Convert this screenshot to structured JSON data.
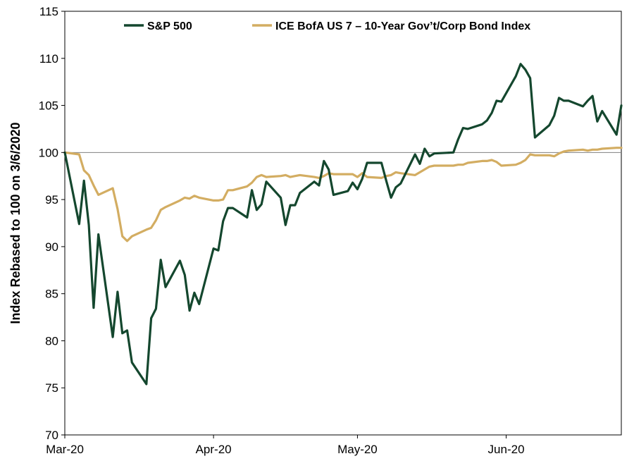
{
  "chart_data": {
    "type": "line",
    "title": "",
    "xlabel": "",
    "ylabel": "Index Rebased to 100 on 3/6/2020",
    "ylim": [
      70,
      115
    ],
    "yticks": [
      70,
      75,
      80,
      85,
      90,
      95,
      100,
      105,
      110,
      115
    ],
    "xlim": [
      "2020-03-06",
      "2020-06-30"
    ],
    "xticks": [
      {
        "date": "2020-03-06",
        "label": "Mar-20"
      },
      {
        "date": "2020-04-06",
        "label": "Apr-20"
      },
      {
        "date": "2020-05-06",
        "label": "May-20"
      },
      {
        "date": "2020-06-06",
        "label": "Jun-20"
      }
    ],
    "reference_line": 100,
    "grid": false,
    "legend_position": "top",
    "series": [
      {
        "name": "S&P 500",
        "color": "#14472e",
        "points": [
          [
            "2020-03-06",
            100.0
          ],
          [
            "2020-03-09",
            92.4
          ],
          [
            "2020-03-10",
            97.0
          ],
          [
            "2020-03-11",
            92.3
          ],
          [
            "2020-03-12",
            83.5
          ],
          [
            "2020-03-13",
            91.3
          ],
          [
            "2020-03-16",
            80.4
          ],
          [
            "2020-03-17",
            85.2
          ],
          [
            "2020-03-18",
            80.8
          ],
          [
            "2020-03-19",
            81.1
          ],
          [
            "2020-03-20",
            77.7
          ],
          [
            "2020-03-23",
            75.4
          ],
          [
            "2020-03-24",
            82.4
          ],
          [
            "2020-03-25",
            83.4
          ],
          [
            "2020-03-26",
            88.6
          ],
          [
            "2020-03-27",
            85.7
          ],
          [
            "2020-03-30",
            88.5
          ],
          [
            "2020-03-31",
            87.0
          ],
          [
            "2020-04-01",
            83.2
          ],
          [
            "2020-04-02",
            85.1
          ],
          [
            "2020-04-03",
            83.9
          ],
          [
            "2020-04-06",
            89.8
          ],
          [
            "2020-04-07",
            89.6
          ],
          [
            "2020-04-08",
            92.7
          ],
          [
            "2020-04-09",
            94.1
          ],
          [
            "2020-04-10",
            94.1
          ],
          [
            "2020-04-13",
            93.1
          ],
          [
            "2020-04-14",
            96.0
          ],
          [
            "2020-04-15",
            93.9
          ],
          [
            "2020-04-16",
            94.5
          ],
          [
            "2020-04-17",
            96.9
          ],
          [
            "2020-04-20",
            95.2
          ],
          [
            "2020-04-21",
            92.3
          ],
          [
            "2020-04-22",
            94.4
          ],
          [
            "2020-04-23",
            94.4
          ],
          [
            "2020-04-24",
            95.7
          ],
          [
            "2020-04-27",
            96.9
          ],
          [
            "2020-04-28",
            96.5
          ],
          [
            "2020-04-29",
            99.1
          ],
          [
            "2020-04-30",
            98.2
          ],
          [
            "2020-05-01",
            95.5
          ],
          [
            "2020-05-04",
            95.9
          ],
          [
            "2020-05-05",
            96.8
          ],
          [
            "2020-05-06",
            96.1
          ],
          [
            "2020-05-07",
            97.2
          ],
          [
            "2020-05-08",
            98.9
          ],
          [
            "2020-05-11",
            98.9
          ],
          [
            "2020-05-12",
            97.0
          ],
          [
            "2020-05-13",
            95.2
          ],
          [
            "2020-05-14",
            96.3
          ],
          [
            "2020-05-15",
            96.7
          ],
          [
            "2020-05-18",
            99.8
          ],
          [
            "2020-05-19",
            98.8
          ],
          [
            "2020-05-20",
            100.4
          ],
          [
            "2020-05-21",
            99.6
          ],
          [
            "2020-05-22",
            99.9
          ],
          [
            "2020-05-26",
            100.0
          ],
          [
            "2020-05-27",
            101.4
          ],
          [
            "2020-05-28",
            102.6
          ],
          [
            "2020-05-29",
            102.5
          ],
          [
            "2020-06-01",
            103.0
          ],
          [
            "2020-06-02",
            103.4
          ],
          [
            "2020-06-03",
            104.2
          ],
          [
            "2020-06-04",
            105.5
          ],
          [
            "2020-06-05",
            105.4
          ],
          [
            "2020-06-08",
            108.1
          ],
          [
            "2020-06-09",
            109.4
          ],
          [
            "2020-06-10",
            108.8
          ],
          [
            "2020-06-11",
            107.9
          ],
          [
            "2020-06-12",
            101.6
          ],
          [
            "2020-06-15",
            102.9
          ],
          [
            "2020-06-16",
            103.9
          ],
          [
            "2020-06-17",
            105.8
          ],
          [
            "2020-06-18",
            105.5
          ],
          [
            "2020-06-19",
            105.5
          ],
          [
            "2020-06-22",
            104.9
          ],
          [
            "2020-06-23",
            105.5
          ],
          [
            "2020-06-24",
            106.0
          ],
          [
            "2020-06-25",
            103.3
          ],
          [
            "2020-06-26",
            104.4
          ],
          [
            "2020-06-29",
            101.9
          ],
          [
            "2020-06-30",
            105.0
          ]
        ]
      },
      {
        "name": "ICE BofA US 7 – 10-Year Gov’t/Corp Bond Index",
        "color": "#d3ad62",
        "points": [
          [
            "2020-03-06",
            100.0
          ],
          [
            "2020-03-09",
            99.8
          ],
          [
            "2020-03-10",
            98.1
          ],
          [
            "2020-03-11",
            97.6
          ],
          [
            "2020-03-12",
            96.5
          ],
          [
            "2020-03-13",
            95.5
          ],
          [
            "2020-03-16",
            96.2
          ],
          [
            "2020-03-17",
            94.0
          ],
          [
            "2020-03-18",
            91.1
          ],
          [
            "2020-03-19",
            90.6
          ],
          [
            "2020-03-20",
            91.1
          ],
          [
            "2020-03-23",
            91.8
          ],
          [
            "2020-03-24",
            92.0
          ],
          [
            "2020-03-25",
            92.8
          ],
          [
            "2020-03-26",
            93.9
          ],
          [
            "2020-03-27",
            94.2
          ],
          [
            "2020-03-30",
            94.9
          ],
          [
            "2020-03-31",
            95.2
          ],
          [
            "2020-04-01",
            95.1
          ],
          [
            "2020-04-02",
            95.4
          ],
          [
            "2020-04-03",
            95.2
          ],
          [
            "2020-04-06",
            94.9
          ],
          [
            "2020-04-07",
            94.9
          ],
          [
            "2020-04-08",
            95.0
          ],
          [
            "2020-04-09",
            96.0
          ],
          [
            "2020-04-10",
            96.0
          ],
          [
            "2020-04-13",
            96.4
          ],
          [
            "2020-04-14",
            96.8
          ],
          [
            "2020-04-15",
            97.4
          ],
          [
            "2020-04-16",
            97.6
          ],
          [
            "2020-04-17",
            97.4
          ],
          [
            "2020-04-20",
            97.5
          ],
          [
            "2020-04-21",
            97.6
          ],
          [
            "2020-04-22",
            97.4
          ],
          [
            "2020-04-23",
            97.5
          ],
          [
            "2020-04-24",
            97.6
          ],
          [
            "2020-04-27",
            97.4
          ],
          [
            "2020-04-28",
            97.3
          ],
          [
            "2020-04-29",
            97.5
          ],
          [
            "2020-04-30",
            97.8
          ],
          [
            "2020-05-01",
            97.7
          ],
          [
            "2020-05-04",
            97.7
          ],
          [
            "2020-05-05",
            97.7
          ],
          [
            "2020-05-06",
            97.4
          ],
          [
            "2020-05-07",
            97.8
          ],
          [
            "2020-05-08",
            97.4
          ],
          [
            "2020-05-11",
            97.3
          ],
          [
            "2020-05-12",
            97.5
          ],
          [
            "2020-05-13",
            97.6
          ],
          [
            "2020-05-14",
            97.9
          ],
          [
            "2020-05-15",
            97.8
          ],
          [
            "2020-05-18",
            97.6
          ],
          [
            "2020-05-19",
            97.9
          ],
          [
            "2020-05-20",
            98.2
          ],
          [
            "2020-05-21",
            98.5
          ],
          [
            "2020-05-22",
            98.6
          ],
          [
            "2020-05-26",
            98.6
          ],
          [
            "2020-05-27",
            98.7
          ],
          [
            "2020-05-28",
            98.7
          ],
          [
            "2020-05-29",
            98.9
          ],
          [
            "2020-06-01",
            99.1
          ],
          [
            "2020-06-02",
            99.1
          ],
          [
            "2020-06-03",
            99.2
          ],
          [
            "2020-06-04",
            99.0
          ],
          [
            "2020-06-05",
            98.6
          ],
          [
            "2020-06-08",
            98.7
          ],
          [
            "2020-06-09",
            98.9
          ],
          [
            "2020-06-10",
            99.2
          ],
          [
            "2020-06-11",
            99.8
          ],
          [
            "2020-06-12",
            99.7
          ],
          [
            "2020-06-15",
            99.7
          ],
          [
            "2020-06-16",
            99.6
          ],
          [
            "2020-06-17",
            99.9
          ],
          [
            "2020-06-18",
            100.1
          ],
          [
            "2020-06-19",
            100.2
          ],
          [
            "2020-06-22",
            100.3
          ],
          [
            "2020-06-23",
            100.2
          ],
          [
            "2020-06-24",
            100.3
          ],
          [
            "2020-06-25",
            100.3
          ],
          [
            "2020-06-26",
            100.4
          ],
          [
            "2020-06-29",
            100.5
          ],
          [
            "2020-06-30",
            100.5
          ]
        ]
      }
    ]
  }
}
